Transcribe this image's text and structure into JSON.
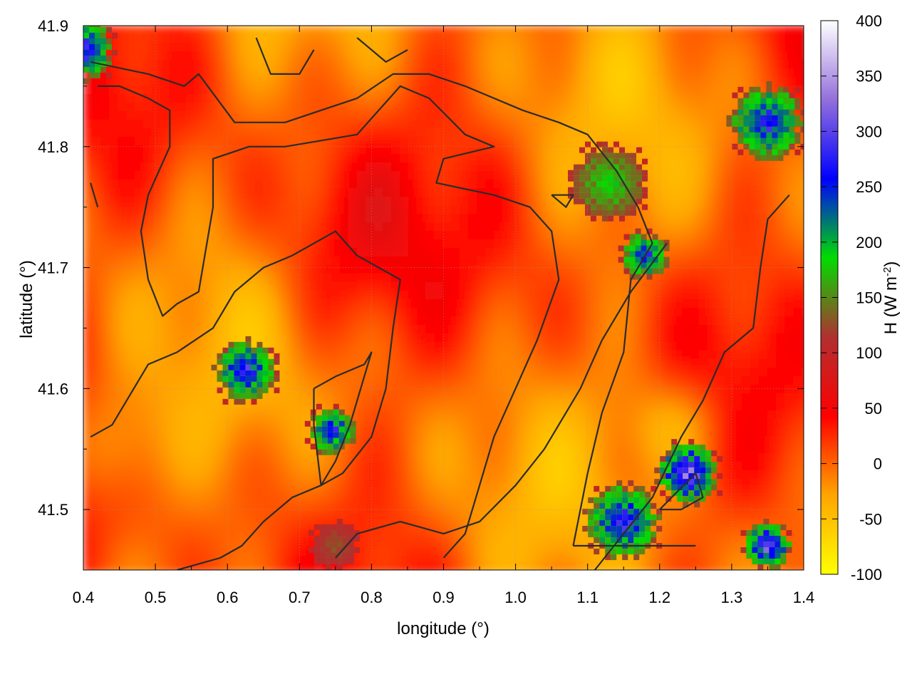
{
  "chart_data": {
    "type": "heatmap",
    "xlabel": "longitude (°)",
    "ylabel": "latitude (°)",
    "xlim": [
      0.4,
      1.4
    ],
    "ylim": [
      41.45,
      41.9
    ],
    "xticks": [
      "0.4",
      "0.5",
      "0.6",
      "0.7",
      "0.8",
      "0.9",
      "1.0",
      "1.1",
      "1.2",
      "1.3",
      "1.4"
    ],
    "yticks": [
      "41.5",
      "41.6",
      "41.7",
      "41.8",
      "41.9"
    ],
    "grid": true,
    "colorbar": {
      "label": "H (W m",
      "label_sup": "-2",
      "label_end": ")",
      "range": [
        -100,
        400
      ],
      "ticks": [
        "-100",
        "-50",
        "0",
        "50",
        "100",
        "150",
        "200",
        "250",
        "300",
        "350",
        "400"
      ],
      "colors": [
        "#ffff00",
        "#ffa500",
        "#ff0000",
        "#b03030",
        "#00dd00",
        "#0000ff",
        "#9370db",
        "#ffffff"
      ]
    },
    "field_anomalies": [
      {
        "lon": 0.745,
        "lat": 41.565,
        "value": 280
      },
      {
        "lon": 0.625,
        "lat": 41.615,
        "value": 290
      },
      {
        "lon": 1.13,
        "lat": 41.77,
        "value": 190
      },
      {
        "lon": 1.18,
        "lat": 41.71,
        "value": 270
      },
      {
        "lon": 1.24,
        "lat": 41.53,
        "value": 330
      },
      {
        "lon": 1.15,
        "lat": 41.49,
        "value": 290
      },
      {
        "lon": 0.75,
        "lat": 41.47,
        "value": 130
      },
      {
        "lon": 0.4,
        "lat": 41.88,
        "value": 300
      },
      {
        "lon": 1.35,
        "lat": 41.82,
        "value": 280
      },
      {
        "lon": 1.35,
        "lat": 41.47,
        "value": 320
      }
    ],
    "contours": [
      [
        [
          0.41,
          41.87
        ],
        [
          0.49,
          41.86
        ],
        [
          0.54,
          41.85
        ],
        [
          0.56,
          41.86
        ],
        [
          0.61,
          41.82
        ],
        [
          0.68,
          41.82
        ],
        [
          0.73,
          41.83
        ],
        [
          0.78,
          41.84
        ],
        [
          0.83,
          41.86
        ],
        [
          0.88,
          41.86
        ],
        [
          0.93,
          41.85
        ],
        [
          0.97,
          41.84
        ],
        [
          1.01,
          41.83
        ],
        [
          1.06,
          41.82
        ],
        [
          1.1,
          41.81
        ],
        [
          1.14,
          41.78
        ],
        [
          1.17,
          41.75
        ],
        [
          1.19,
          41.72
        ],
        [
          1.16,
          41.69
        ],
        [
          1.15,
          41.63
        ],
        [
          1.12,
          41.58
        ],
        [
          1.1,
          41.53
        ],
        [
          1.08,
          41.47
        ]
      ],
      [
        [
          0.42,
          41.85
        ],
        [
          0.45,
          41.85
        ],
        [
          0.49,
          41.84
        ],
        [
          0.52,
          41.83
        ],
        [
          0.52,
          41.8
        ],
        [
          0.49,
          41.76
        ],
        [
          0.48,
          41.73
        ],
        [
          0.49,
          41.69
        ],
        [
          0.51,
          41.66
        ],
        [
          0.53,
          41.67
        ],
        [
          0.56,
          41.68
        ],
        [
          0.58,
          41.75
        ],
        [
          0.58,
          41.79
        ],
        [
          0.63,
          41.8
        ],
        [
          0.68,
          41.8
        ],
        [
          0.78,
          41.81
        ],
        [
          0.84,
          41.85
        ],
        [
          0.88,
          41.84
        ],
        [
          0.93,
          41.81
        ],
        [
          0.97,
          41.8
        ],
        [
          0.9,
          41.79
        ],
        [
          0.89,
          41.77
        ],
        [
          0.97,
          41.76
        ],
        [
          1.02,
          41.75
        ],
        [
          1.05,
          41.73
        ],
        [
          1.06,
          41.69
        ],
        [
          1.03,
          41.64
        ],
        [
          1.0,
          41.6
        ],
        [
          0.97,
          41.56
        ],
        [
          0.95,
          41.52
        ],
        [
          0.93,
          41.48
        ],
        [
          0.9,
          41.46
        ]
      ],
      [
        [
          0.41,
          41.56
        ],
        [
          0.44,
          41.57
        ],
        [
          0.47,
          41.6
        ],
        [
          0.49,
          41.62
        ],
        [
          0.53,
          41.63
        ],
        [
          0.58,
          41.65
        ],
        [
          0.61,
          41.68
        ],
        [
          0.65,
          41.7
        ],
        [
          0.69,
          41.71
        ],
        [
          0.75,
          41.73
        ],
        [
          0.78,
          41.71
        ],
        [
          0.84,
          41.69
        ],
        [
          0.83,
          41.65
        ],
        [
          0.82,
          41.6
        ],
        [
          0.8,
          41.56
        ],
        [
          0.76,
          41.53
        ],
        [
          0.73,
          41.52
        ],
        [
          0.69,
          41.51
        ],
        [
          0.65,
          41.49
        ],
        [
          0.62,
          41.47
        ],
        [
          0.59,
          41.46
        ],
        [
          0.53,
          41.45
        ]
      ],
      [
        [
          0.72,
          41.6
        ],
        [
          0.75,
          41.61
        ],
        [
          0.79,
          41.62
        ],
        [
          0.8,
          41.63
        ],
        [
          0.77,
          41.57
        ],
        [
          0.75,
          41.54
        ],
        [
          0.73,
          41.52
        ],
        [
          0.72,
          41.57
        ],
        [
          0.72,
          41.6
        ]
      ],
      [
        [
          0.75,
          41.46
        ],
        [
          0.78,
          41.48
        ],
        [
          0.84,
          41.49
        ],
        [
          0.9,
          41.48
        ],
        [
          0.95,
          41.49
        ],
        [
          1.0,
          41.52
        ],
        [
          1.04,
          41.55
        ],
        [
          1.09,
          41.6
        ],
        [
          1.12,
          41.64
        ],
        [
          1.16,
          41.68
        ],
        [
          1.21,
          41.72
        ]
      ],
      [
        [
          1.11,
          41.45
        ],
        [
          1.15,
          41.48
        ],
        [
          1.19,
          41.51
        ],
        [
          1.23,
          41.56
        ],
        [
          1.26,
          41.59
        ],
        [
          1.29,
          41.63
        ],
        [
          1.33,
          41.65
        ],
        [
          1.34,
          41.7
        ],
        [
          1.35,
          41.74
        ],
        [
          1.38,
          41.76
        ]
      ],
      [
        [
          1.2,
          41.5
        ],
        [
          1.25,
          41.53
        ],
        [
          1.26,
          41.51
        ],
        [
          1.23,
          41.5
        ],
        [
          1.2,
          41.5
        ]
      ],
      [
        [
          1.05,
          41.76
        ],
        [
          1.08,
          41.76
        ],
        [
          1.07,
          41.75
        ],
        [
          1.05,
          41.76
        ]
      ],
      [
        [
          1.08,
          41.47
        ],
        [
          1.15,
          41.47
        ],
        [
          1.21,
          41.47
        ],
        [
          1.25,
          41.47
        ]
      ],
      [
        [
          0.41,
          41.77
        ],
        [
          0.42,
          41.75
        ]
      ],
      [
        [
          0.64,
          41.89
        ],
        [
          0.66,
          41.86
        ],
        [
          0.7,
          41.86
        ],
        [
          0.72,
          41.88
        ]
      ],
      [
        [
          0.78,
          41.89
        ],
        [
          0.82,
          41.87
        ],
        [
          0.85,
          41.88
        ]
      ]
    ]
  }
}
